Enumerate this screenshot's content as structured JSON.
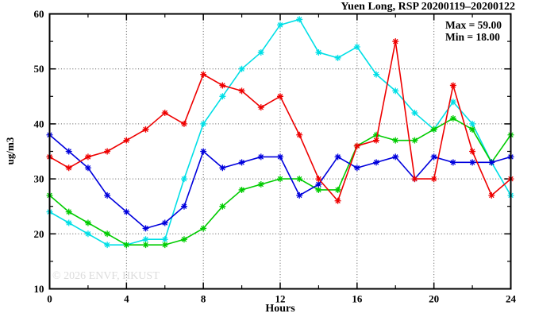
{
  "title": "Yuen Long, RSP 20200119–20200122",
  "stats": {
    "max_label": "Max = 59.00",
    "min_label": "Min = 18.00"
  },
  "watermark": "© 2026 ENVF, HKUST",
  "chart_data": {
    "type": "line",
    "title": "Yuen Long, RSP 20200119–20200122",
    "xlabel": "Hours",
    "ylabel": "ug/m3",
    "xlim": [
      0,
      24
    ],
    "ylim": [
      10,
      60
    ],
    "x_major_ticks": [
      0,
      4,
      8,
      12,
      16,
      20,
      24
    ],
    "x_minor_ticks": [
      2,
      6,
      10,
      14,
      18,
      22
    ],
    "y_major_ticks": [
      10,
      20,
      30,
      40,
      50,
      60
    ],
    "y_minor_ticks": [
      15,
      25,
      35,
      45,
      55
    ],
    "grid_x_at": [
      4,
      8,
      12,
      16,
      20
    ],
    "grid_y_at": [
      20,
      30,
      40,
      50
    ],
    "legend_position": "none",
    "annotation_max": 59.0,
    "annotation_min": 18.0,
    "x": [
      0,
      1,
      2,
      3,
      4,
      5,
      6,
      7,
      8,
      9,
      10,
      11,
      12,
      13,
      14,
      15,
      16,
      17,
      18,
      19,
      20,
      21,
      22,
      23,
      24
    ],
    "series": [
      {
        "name": "series-cyan",
        "color": "#00dfe6",
        "values": [
          24,
          22,
          20,
          18,
          18,
          19,
          19,
          30,
          40,
          45,
          50,
          53,
          58,
          59,
          53,
          52,
          54,
          49,
          46,
          42,
          39,
          44,
          40,
          33,
          27
        ]
      },
      {
        "name": "series-green",
        "color": "#00cc00",
        "values": [
          27,
          24,
          22,
          20,
          18,
          18,
          18,
          19,
          21,
          25,
          28,
          29,
          30,
          30,
          28,
          28,
          36,
          38,
          37,
          37,
          39,
          41,
          39,
          33,
          38
        ]
      },
      {
        "name": "series-blue",
        "color": "#0000dd",
        "values": [
          38,
          35,
          32,
          27,
          24,
          21,
          22,
          25,
          35,
          32,
          33,
          34,
          34,
          27,
          29,
          34,
          32,
          33,
          34,
          30,
          34,
          33,
          33,
          33,
          34
        ]
      },
      {
        "name": "series-red",
        "color": "#ee0000",
        "values": [
          34,
          32,
          34,
          35,
          37,
          39,
          42,
          40,
          49,
          47,
          46,
          43,
          45,
          38,
          30,
          26,
          36,
          37,
          55,
          30,
          30,
          47,
          35,
          27,
          30
        ]
      }
    ],
    "colors": {
      "axis": "#000000",
      "grid": "#555555",
      "watermark": "#dcdcdc"
    }
  }
}
